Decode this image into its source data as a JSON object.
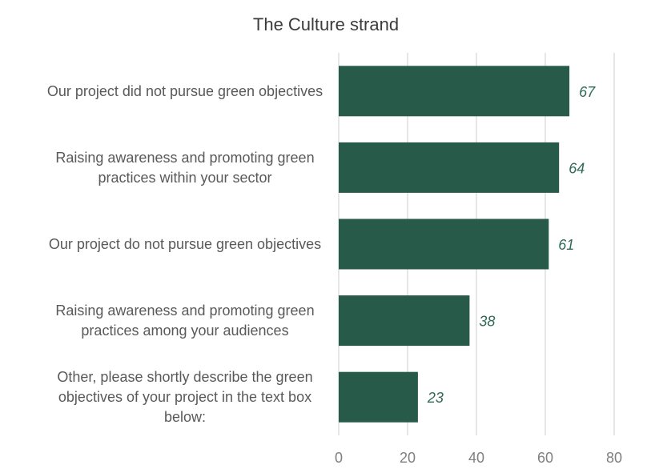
{
  "chart_data": {
    "type": "bar",
    "orientation": "horizontal",
    "title": "The Culture strand",
    "categories": [
      [
        "Our project did not pursue green objectives"
      ],
      [
        "Raising awareness and promoting green",
        "practices within your sector"
      ],
      [
        "Our project do not pursue green objectives"
      ],
      [
        "Raising awareness and promoting green",
        "practices among your audiences"
      ],
      [
        "Other, please shortly describe the green",
        "objectives of your project in the text box",
        "below:"
      ]
    ],
    "values": [
      67,
      64,
      61,
      38,
      23
    ],
    "data_labels": [
      "67",
      "64",
      "61",
      "38",
      "23"
    ],
    "xlim": [
      0,
      80
    ],
    "xticks": [
      "0",
      "20",
      "40",
      "60",
      "80"
    ],
    "grid": true,
    "legend": "none",
    "colors": {
      "bar": "#275a48",
      "data_label": "#2e6b56",
      "grid": "#d9d9d9"
    }
  }
}
